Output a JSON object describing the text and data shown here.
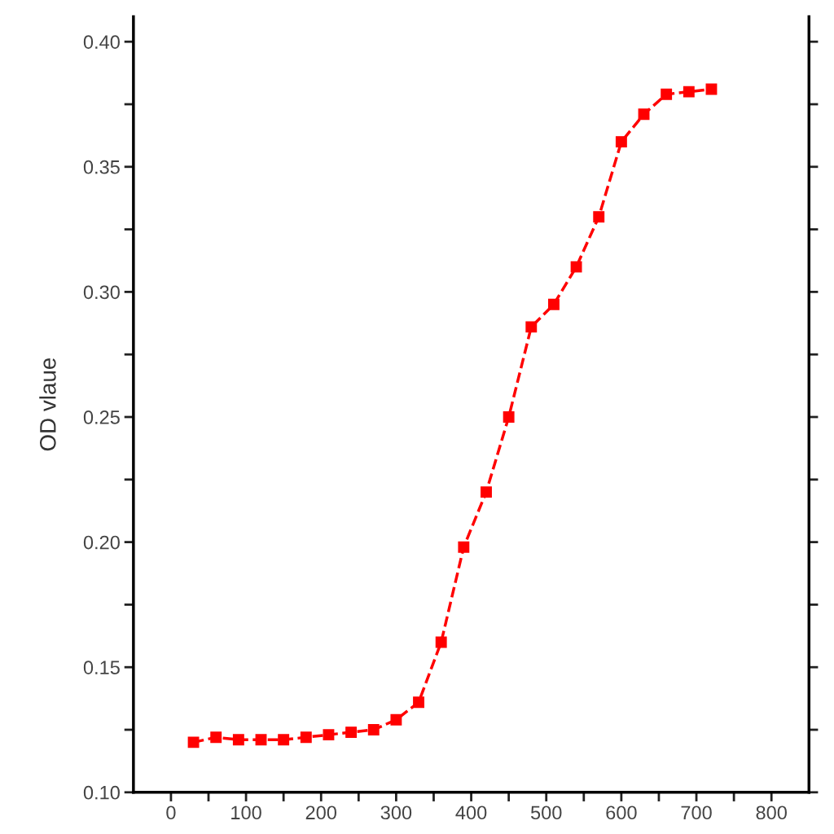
{
  "chart_data": {
    "type": "line",
    "ylabel": "OD vlaue",
    "x": [
      30,
      60,
      90,
      120,
      150,
      180,
      210,
      240,
      270,
      300,
      330,
      360,
      390,
      420,
      450,
      480,
      510,
      540,
      570,
      600,
      630,
      660,
      690,
      720
    ],
    "series": [
      {
        "color": "#ff0000",
        "values": [
          0.12,
          0.122,
          0.121,
          0.121,
          0.121,
          0.122,
          0.123,
          0.124,
          0.125,
          0.129,
          0.136,
          0.16,
          0.198,
          0.22,
          0.25,
          0.286,
          0.295,
          0.31,
          0.33,
          0.36,
          0.371,
          0.379,
          0.38,
          0.381
        ]
      }
    ],
    "marker": "square",
    "line_style": "dashed",
    "grid": false,
    "legend": false,
    "xlim": [
      -50,
      850
    ],
    "ylim": [
      0.1,
      0.41
    ],
    "xticks": [
      0,
      {
        "value": 50,
        "label": null
      },
      100,
      {
        "value": 150,
        "label": null
      },
      200,
      {
        "value": 250,
        "label": null
      },
      300,
      {
        "value": 350,
        "label": null
      },
      400,
      {
        "value": 450,
        "label": null
      },
      500,
      {
        "value": 550,
        "label": null
      },
      600,
      {
        "value": 650,
        "label": null
      },
      700,
      {
        "value": 750,
        "label": null
      },
      800
    ],
    "yticks": [
      {
        "value": 0.1,
        "label": "0.10"
      },
      {
        "value": 0.125,
        "label": null
      },
      {
        "value": 0.15,
        "label": "0.15"
      },
      {
        "value": 0.175,
        "label": null
      },
      {
        "value": 0.2,
        "label": "0.20"
      },
      {
        "value": 0.225,
        "label": null
      },
      {
        "value": 0.25,
        "label": "0.25"
      },
      {
        "value": 0.275,
        "label": null
      },
      {
        "value": 0.3,
        "label": "0.30"
      },
      {
        "value": 0.325,
        "label": null
      },
      {
        "value": 0.35,
        "label": "0.35"
      },
      {
        "value": 0.375,
        "label": null
      },
      {
        "value": 0.4,
        "label": "0.40"
      }
    ]
  }
}
